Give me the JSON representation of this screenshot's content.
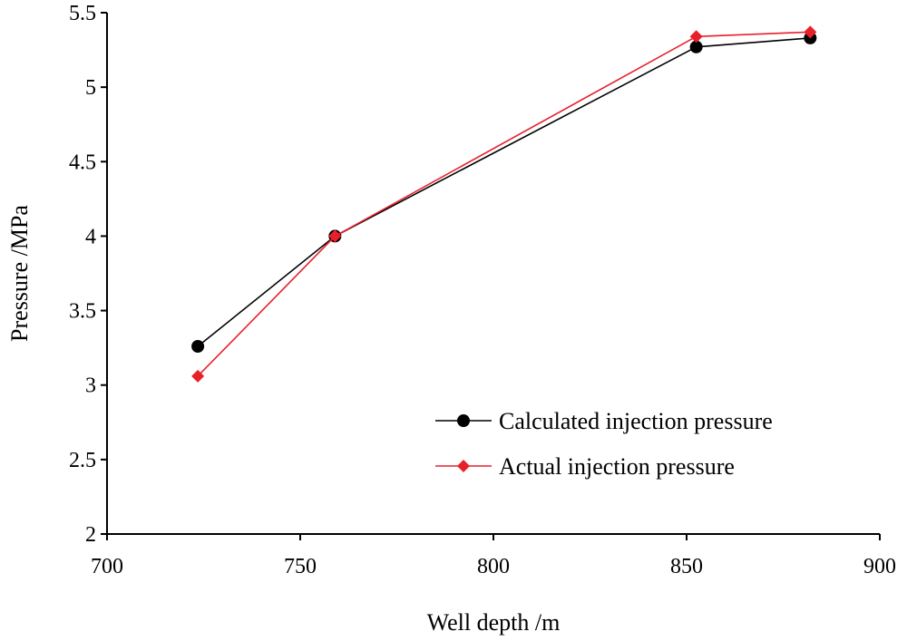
{
  "chart_data": {
    "type": "line",
    "title": "",
    "xlabel": "Well depth /m",
    "ylabel": "Pressure /MPa",
    "xlim": [
      700,
      900
    ],
    "ylim": [
      2,
      5.5
    ],
    "xticks": [
      700,
      750,
      800,
      850,
      900
    ],
    "yticks": [
      2,
      2.5,
      3,
      3.5,
      4,
      4.5,
      5,
      5.5
    ],
    "xtick_labels": [
      "700",
      "750",
      "800",
      "850",
      "900"
    ],
    "ytick_labels": [
      "2",
      "2.5",
      "3",
      "3.5",
      "4",
      "4.5",
      "5",
      "5.5"
    ],
    "grid": false,
    "legend_position": "bottom-right",
    "series": [
      {
        "name": "Calculated injection pressure",
        "color": "#000000",
        "marker": "circle",
        "x": [
          723.5,
          759,
          852.5,
          882
        ],
        "y": [
          3.26,
          4.0,
          5.27,
          5.33
        ]
      },
      {
        "name": "Actual injection pressure",
        "color": "#e8202a",
        "marker": "diamond",
        "x": [
          723.5,
          759,
          852.5,
          882
        ],
        "y": [
          3.06,
          4.0,
          5.34,
          5.37
        ]
      }
    ]
  }
}
